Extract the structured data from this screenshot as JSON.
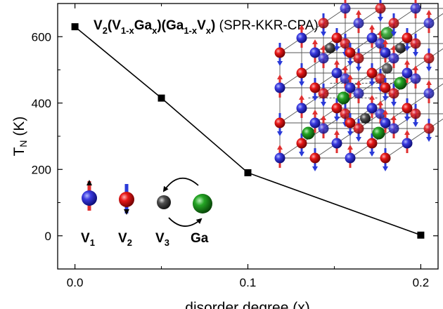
{
  "chart_data": {
    "type": "line",
    "title": {
      "v2": "V",
      "v2_sub": "2",
      "open1": "(V",
      "sub_1x": "1-x",
      "ga": "Ga",
      "sub_x": "x",
      "close_open": ")(Ga",
      "v": "V",
      "close": ")",
      "method": " (SPR-KKR-CPA)"
    },
    "xlabel": "disorder degree (x)",
    "ylabel": {
      "main": "T",
      "sub": "N",
      "unit": " (K)"
    },
    "xlim": [
      -0.01,
      0.21
    ],
    "ylim": [
      -100,
      700
    ],
    "xticks": [
      0.0,
      0.1,
      0.2
    ],
    "xtick_labels": [
      "0.0",
      "0.1",
      "0.2"
    ],
    "xminor": [
      0.05,
      0.15
    ],
    "yticks": [
      0,
      200,
      400,
      600
    ],
    "ytick_labels": [
      "0",
      "200",
      "400",
      "600"
    ],
    "yminor": [
      -100,
      100,
      300,
      500,
      700
    ],
    "series": [
      {
        "x": [
          0.0,
          0.05,
          0.1,
          0.2
        ],
        "y": [
          630,
          415,
          190,
          2
        ],
        "color": "#000000",
        "marker": "square"
      }
    ],
    "legend": [
      {
        "label": "V",
        "sub": "1",
        "color": "#2a2ad8",
        "spin": "up"
      },
      {
        "label": "V",
        "sub": "2",
        "color": "#e01010",
        "spin": "down"
      },
      {
        "label": "V",
        "sub": "3",
        "color": "#303030",
        "spin": "none"
      },
      {
        "label": "Ga",
        "sub": "",
        "color": "#1e9a1e",
        "spin": "none"
      }
    ]
  },
  "colors": {
    "v1": "#2a2ad8",
    "v2": "#e01010",
    "v3": "#303030",
    "ga": "#1e9a1e",
    "spin_up": "#e03030",
    "spin_down": "#2a3ad8"
  }
}
